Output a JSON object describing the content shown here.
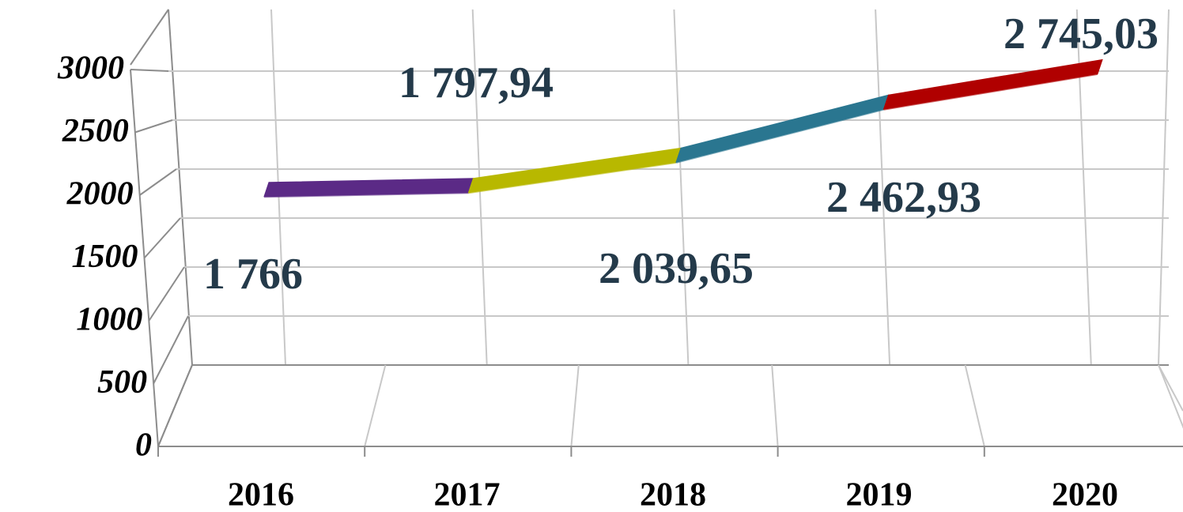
{
  "chart_data": {
    "type": "line3d",
    "categories": [
      "2016",
      "2017",
      "2018",
      "2019",
      "2020"
    ],
    "values": [
      1766,
      1797.94,
      2039.65,
      2462.93,
      2745.03
    ],
    "value_labels": [
      "1 766",
      "1 797,94",
      "2 039,65",
      "2 462,93",
      "2 745,03"
    ],
    "colors": [
      "#5b2a86",
      "#b8b800",
      "#2a7690",
      "#b00000"
    ],
    "ylim": [
      0,
      3000
    ],
    "yticks": [
      0,
      500,
      1000,
      1500,
      2000,
      2500,
      3000
    ],
    "grid": true
  }
}
